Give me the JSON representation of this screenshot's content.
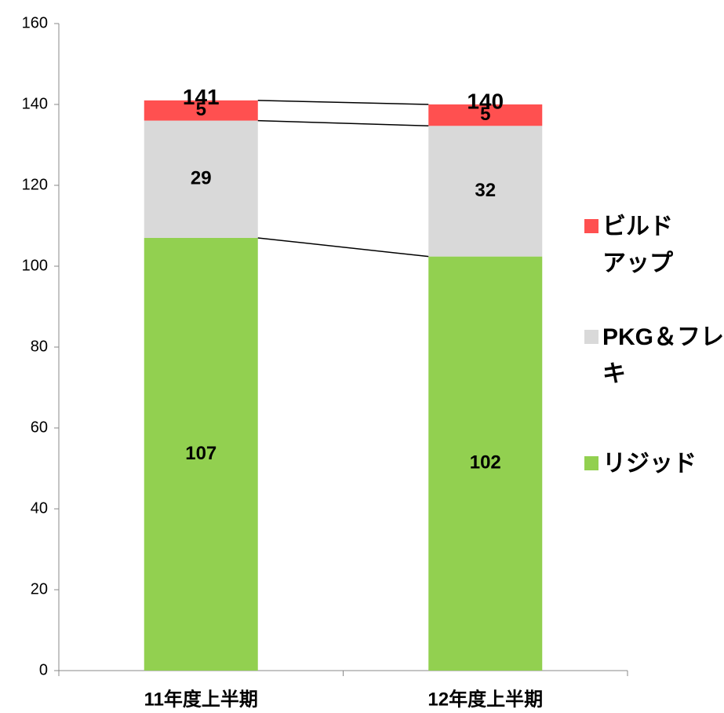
{
  "chart_data": {
    "type": "stacked_bar",
    "categories": [
      "11年度上半期",
      "12年度上半期"
    ],
    "series": [
      {
        "name": "リジッド",
        "color": "#92d050",
        "values": [
          107,
          102.4
        ],
        "value_labels": [
          "107",
          "102"
        ]
      },
      {
        "name": "PKG＆フレキ",
        "color": "#d9d9d9",
        "values": [
          29,
          32.3
        ],
        "value_labels": [
          "29",
          "32"
        ]
      },
      {
        "name": "ビルドアップ",
        "color": "#ff5050",
        "values": [
          5,
          5.3
        ],
        "value_labels": [
          "5",
          "5"
        ]
      }
    ],
    "totals": [
      141,
      140
    ],
    "ylim": [
      0,
      160
    ],
    "yticks": [
      0,
      20,
      40,
      60,
      80,
      100,
      120,
      140,
      160
    ],
    "legend": "right"
  }
}
